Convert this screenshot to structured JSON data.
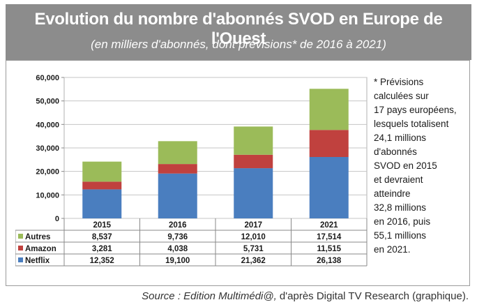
{
  "header": {
    "title": "Evolution du nombre d'abonnés SVOD en Europe de l'Ouest",
    "subtitle": "(en milliers d'abonnés, dont prévisions* de 2016 à 2021)"
  },
  "note": {
    "lines": [
      "* Prévisions",
      "calculées sur",
      "17 pays européens,",
      "lesquels totalisent",
      "24,1 millions",
      "d'abonnés",
      "SVOD en 2015",
      "et devraient",
      "atteindre",
      "32,8 millions",
      "en 2016, puis",
      "55,1 millions",
      "en 2021."
    ]
  },
  "source": {
    "italic": "Source : Edition Multimédi@,",
    "rest": " d'après Digital TV Research (graphique)."
  },
  "chart_data": {
    "type": "bar",
    "stacked": true,
    "categories": [
      "2015",
      "2016",
      "2017",
      "2021"
    ],
    "series": [
      {
        "name": "Netflix",
        "values": [
          12352,
          19100,
          21362,
          26138
        ],
        "values_text": [
          "12,352",
          "19,100",
          "21,362",
          "26,138"
        ],
        "color": "#4a7ebf"
      },
      {
        "name": "Amazon",
        "values": [
          3281,
          4038,
          5731,
          11515
        ],
        "values_text": [
          "3,281",
          "4,038",
          "5,731",
          "11,515"
        ],
        "color": "#c0413e"
      },
      {
        "name": "Autres",
        "values": [
          8537,
          9736,
          12010,
          17514
        ],
        "values_text": [
          "8,537",
          "9,736",
          "12,010",
          "17,514"
        ],
        "color": "#9bbb59"
      }
    ],
    "ylim": [
      0,
      60000
    ],
    "yticks": [
      0,
      10000,
      20000,
      30000,
      40000,
      50000,
      60000
    ],
    "ytick_labels": [
      "0",
      "10,000",
      "20,000",
      "30,000",
      "40,000",
      "50,000",
      "60,000"
    ],
    "grid": true,
    "legend": "data-table",
    "table_row_order": [
      "Autres",
      "Amazon",
      "Netflix"
    ]
  }
}
